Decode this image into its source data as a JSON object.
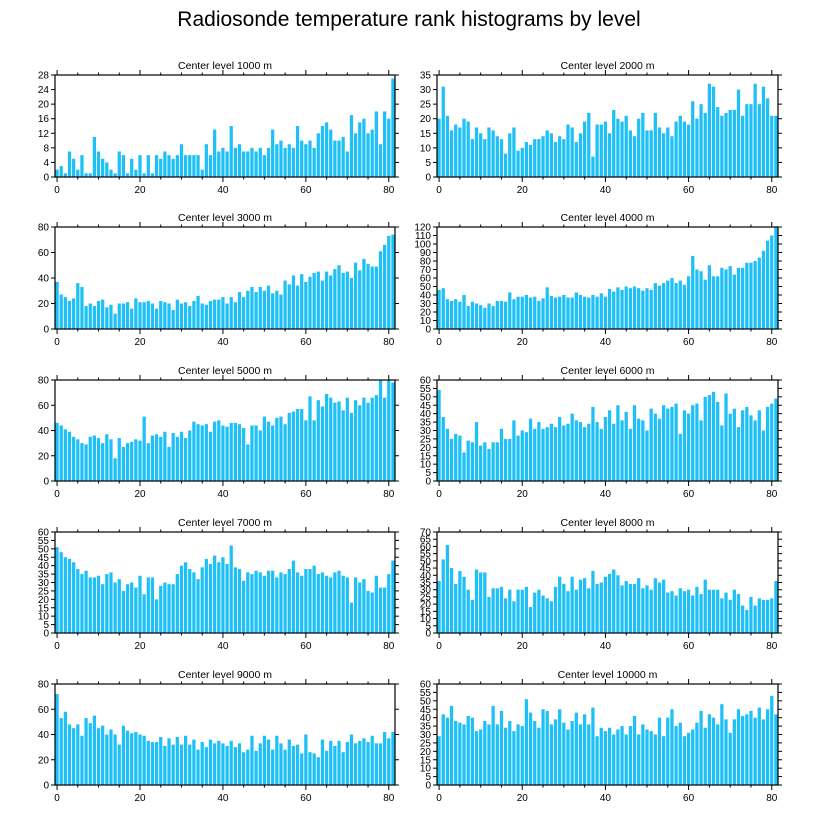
{
  "figure_title": "Radiosonde temperature rank histograms by level",
  "colors": {
    "bar": "#1ec0f5",
    "axis": "#000000",
    "background": "#ffffff"
  },
  "chart_data": [
    {
      "type": "bar",
      "title": "Center level 1000 m",
      "xlabel": "",
      "ylabel": "",
      "xlim": [
        -0.5,
        81.5
      ],
      "ylim": [
        0,
        28
      ],
      "xticks": [
        0,
        20,
        40,
        60,
        80
      ],
      "yticks": [
        0,
        4,
        8,
        12,
        16,
        20,
        24,
        28
      ],
      "values": [
        2,
        3,
        1,
        7,
        5,
        2,
        6,
        1,
        1,
        11,
        7,
        5,
        4,
        2,
        1,
        7,
        6,
        1,
        5,
        2,
        6,
        1,
        6,
        1,
        6,
        5,
        7,
        6,
        5,
        6,
        9,
        6,
        6,
        6,
        6,
        2,
        9,
        6,
        13,
        7,
        8,
        7,
        14,
        8,
        9,
        7,
        7,
        8,
        7,
        8,
        6,
        8,
        13,
        9,
        10,
        8,
        9,
        8,
        14,
        10,
        9,
        10,
        8,
        12,
        14,
        15,
        13,
        10,
        10,
        11,
        7,
        17,
        12,
        15,
        16,
        12,
        13,
        18,
        9,
        18,
        16,
        27
      ]
    },
    {
      "type": "bar",
      "title": "Center level 2000 m",
      "xlabel": "",
      "ylabel": "",
      "xlim": [
        -0.5,
        81.5
      ],
      "ylim": [
        0,
        35
      ],
      "xticks": [
        0,
        20,
        40,
        60,
        80
      ],
      "yticks": [
        0,
        5,
        10,
        15,
        20,
        25,
        30,
        35
      ],
      "values": [
        20,
        31,
        21,
        16,
        18,
        17,
        20,
        19,
        13,
        17,
        15,
        13,
        17,
        16,
        14,
        13,
        8,
        15,
        17,
        9,
        10,
        12,
        11,
        13,
        13,
        14,
        16,
        15,
        12,
        14,
        13,
        18,
        17,
        12,
        15,
        19,
        22,
        7,
        18,
        18,
        19,
        15,
        23,
        20,
        19,
        21,
        16,
        14,
        20,
        22,
        16,
        16,
        22,
        17,
        15,
        17,
        14,
        19,
        21,
        19,
        18,
        26,
        20,
        25,
        22,
        32,
        31,
        24,
        21,
        22,
        23,
        23,
        30,
        21,
        25,
        25,
        32,
        25,
        31,
        27,
        21,
        21
      ]
    },
    {
      "type": "bar",
      "title": "Center level 3000 m",
      "xlabel": "",
      "ylabel": "",
      "xlim": [
        -0.5,
        81.5
      ],
      "ylim": [
        0,
        80
      ],
      "xticks": [
        0,
        20,
        40,
        60,
        80
      ],
      "yticks": [
        0,
        20,
        40,
        60,
        80
      ],
      "values": [
        37,
        27,
        25,
        22,
        24,
        36,
        33,
        18,
        20,
        18,
        22,
        23,
        17,
        19,
        12,
        20,
        20,
        21,
        16,
        24,
        21,
        21,
        22,
        20,
        16,
        22,
        21,
        20,
        15,
        23,
        20,
        21,
        18,
        22,
        26,
        20,
        19,
        22,
        23,
        23,
        25,
        20,
        25,
        21,
        29,
        25,
        30,
        33,
        29,
        33,
        30,
        34,
        28,
        30,
        27,
        38,
        35,
        42,
        34,
        43,
        37,
        41,
        44,
        45,
        38,
        45,
        42,
        47,
        50,
        44,
        45,
        40,
        52,
        46,
        55,
        51,
        49,
        49,
        61,
        66,
        73,
        74
      ]
    },
    {
      "type": "bar",
      "title": "Center level 4000 m",
      "xlabel": "",
      "ylabel": "",
      "xlim": [
        -0.5,
        81.5
      ],
      "ylim": [
        0,
        120
      ],
      "xticks": [
        0,
        20,
        40,
        60,
        80
      ],
      "yticks": [
        0,
        10,
        20,
        30,
        40,
        50,
        60,
        70,
        80,
        90,
        100,
        110,
        120
      ],
      "values": [
        46,
        48,
        35,
        33,
        35,
        32,
        40,
        27,
        32,
        30,
        28,
        25,
        30,
        27,
        33,
        33,
        32,
        43,
        35,
        38,
        38,
        40,
        37,
        38,
        33,
        36,
        49,
        39,
        37,
        38,
        40,
        37,
        37,
        43,
        40,
        38,
        37,
        40,
        38,
        42,
        38,
        47,
        44,
        49,
        46,
        50,
        48,
        50,
        48,
        45,
        48,
        46,
        54,
        51,
        54,
        57,
        60,
        54,
        57,
        52,
        62,
        86,
        70,
        68,
        58,
        75,
        62,
        62,
        72,
        70,
        74,
        64,
        72,
        72,
        78,
        78,
        80,
        84,
        92,
        104,
        110,
        120
      ]
    },
    {
      "type": "bar",
      "title": "Center level 5000 m",
      "xlabel": "",
      "ylabel": "",
      "xlim": [
        -0.5,
        81.5
      ],
      "ylim": [
        0,
        80
      ],
      "xticks": [
        0,
        20,
        40,
        60,
        80
      ],
      "yticks": [
        0,
        20,
        40,
        60,
        80
      ],
      "values": [
        46,
        44,
        41,
        39,
        35,
        33,
        30,
        29,
        35,
        36,
        34,
        30,
        37,
        33,
        18,
        34,
        27,
        30,
        31,
        33,
        32,
        51,
        30,
        36,
        37,
        35,
        39,
        27,
        38,
        35,
        39,
        34,
        40,
        47,
        45,
        44,
        45,
        39,
        47,
        48,
        44,
        43,
        46,
        46,
        45,
        42,
        29,
        44,
        44,
        40,
        51,
        47,
        44,
        50,
        51,
        45,
        54,
        55,
        57,
        57,
        48,
        67,
        48,
        64,
        59,
        69,
        66,
        62,
        63,
        56,
        66,
        54,
        64,
        60,
        66,
        62,
        66,
        68,
        80,
        66,
        80,
        78
      ]
    },
    {
      "type": "bar",
      "title": "Center level 6000 m",
      "xlabel": "",
      "ylabel": "",
      "xlim": [
        -0.5,
        81.5
      ],
      "ylim": [
        0,
        60
      ],
      "xticks": [
        0,
        20,
        40,
        60,
        80
      ],
      "yticks": [
        0,
        5,
        10,
        15,
        20,
        25,
        30,
        35,
        40,
        45,
        50,
        55,
        60
      ],
      "values": [
        54,
        38,
        31,
        25,
        28,
        27,
        17,
        24,
        23,
        35,
        21,
        23,
        19,
        23,
        23,
        31,
        25,
        25,
        36,
        27,
        30,
        29,
        37,
        31,
        35,
        31,
        32,
        34,
        32,
        38,
        33,
        34,
        40,
        36,
        35,
        32,
        34,
        44,
        35,
        31,
        38,
        42,
        34,
        45,
        36,
        41,
        31,
        45,
        37,
        36,
        30,
        43,
        40,
        37,
        45,
        43,
        44,
        46,
        28,
        42,
        40,
        45,
        46,
        36,
        50,
        51,
        53,
        47,
        33,
        52,
        40,
        43,
        32,
        42,
        44,
        39,
        36,
        42,
        30,
        44,
        46,
        49
      ]
    },
    {
      "type": "bar",
      "title": "Center level 7000 m",
      "xlabel": "",
      "ylabel": "",
      "xlim": [
        -0.5,
        81.5
      ],
      "ylim": [
        0,
        60
      ],
      "xticks": [
        0,
        20,
        40,
        60,
        80
      ],
      "yticks": [
        0,
        5,
        10,
        15,
        20,
        25,
        30,
        35,
        40,
        45,
        50,
        55,
        60
      ],
      "values": [
        51,
        48,
        45,
        44,
        42,
        38,
        35,
        37,
        33,
        33,
        34,
        29,
        35,
        36,
        30,
        32,
        25,
        29,
        30,
        27,
        34,
        23,
        33,
        33,
        20,
        28,
        30,
        29,
        29,
        35,
        40,
        42,
        38,
        36,
        32,
        39,
        44,
        41,
        46,
        42,
        45,
        41,
        52,
        39,
        38,
        31,
        36,
        35,
        37,
        36,
        34,
        37,
        37,
        33,
        36,
        35,
        38,
        43,
        36,
        34,
        38,
        38,
        40,
        35,
        36,
        34,
        33,
        36,
        37,
        34,
        33,
        18,
        33,
        30,
        32,
        25,
        24,
        34,
        27,
        27,
        35,
        43
      ]
    },
    {
      "type": "bar",
      "title": "Center level 8000 m",
      "xlabel": "",
      "ylabel": "",
      "xlim": [
        -0.5,
        81.5
      ],
      "ylim": [
        0,
        70
      ],
      "xticks": [
        0,
        20,
        40,
        60,
        80
      ],
      "yticks": [
        0,
        5,
        10,
        15,
        20,
        25,
        30,
        35,
        40,
        45,
        50,
        55,
        60,
        65,
        70
      ],
      "values": [
        36,
        51,
        61,
        45,
        34,
        43,
        39,
        30,
        23,
        44,
        42,
        42,
        25,
        31,
        31,
        32,
        24,
        30,
        22,
        30,
        30,
        32,
        18,
        28,
        30,
        26,
        24,
        22,
        32,
        39,
        34,
        29,
        39,
        30,
        37,
        38,
        31,
        43,
        34,
        35,
        39,
        41,
        44,
        40,
        33,
        36,
        34,
        34,
        38,
        31,
        33,
        30,
        38,
        35,
        37,
        28,
        29,
        26,
        31,
        29,
        30,
        26,
        32,
        27,
        37,
        30,
        30,
        30,
        24,
        28,
        23,
        30,
        27,
        19,
        16,
        25,
        19,
        24,
        23,
        23,
        24,
        36
      ]
    },
    {
      "type": "bar",
      "title": "Center level 9000 m",
      "xlabel": "",
      "ylabel": "",
      "xlim": [
        -0.5,
        81.5
      ],
      "ylim": [
        0,
        80
      ],
      "xticks": [
        0,
        20,
        40,
        60,
        80
      ],
      "yticks": [
        0,
        20,
        40,
        60,
        80
      ],
      "values": [
        72,
        53,
        58,
        48,
        45,
        48,
        39,
        53,
        49,
        55,
        45,
        47,
        40,
        44,
        40,
        32,
        47,
        43,
        41,
        42,
        40,
        39,
        35,
        34,
        34,
        38,
        31,
        37,
        32,
        38,
        32,
        39,
        32,
        36,
        28,
        34,
        30,
        36,
        33,
        35,
        33,
        31,
        35,
        30,
        33,
        26,
        28,
        39,
        27,
        33,
        39,
        36,
        28,
        39,
        33,
        28,
        36,
        31,
        32,
        25,
        40,
        26,
        25,
        22,
        36,
        27,
        35,
        31,
        35,
        26,
        34,
        40,
        33,
        35,
        37,
        34,
        39,
        33,
        33,
        42,
        37,
        42
      ]
    },
    {
      "type": "bar",
      "title": "Center level 10000 m",
      "xlabel": "",
      "ylabel": "",
      "xlim": [
        -0.5,
        81.5
      ],
      "ylim": [
        0,
        60
      ],
      "xticks": [
        0,
        20,
        40,
        60,
        80
      ],
      "yticks": [
        0,
        5,
        10,
        15,
        20,
        25,
        30,
        35,
        40,
        45,
        50,
        55,
        60
      ],
      "values": [
        29,
        42,
        40,
        47,
        38,
        37,
        36,
        41,
        40,
        32,
        33,
        38,
        36,
        47,
        36,
        44,
        34,
        38,
        32,
        36,
        35,
        51,
        43,
        38,
        34,
        45,
        44,
        36,
        39,
        45,
        37,
        33,
        38,
        43,
        36,
        42,
        36,
        46,
        29,
        34,
        32,
        34,
        30,
        33,
        35,
        30,
        35,
        41,
        30,
        36,
        33,
        32,
        30,
        40,
        29,
        40,
        45,
        35,
        37,
        29,
        31,
        33,
        37,
        44,
        34,
        42,
        40,
        36,
        48,
        39,
        31,
        39,
        45,
        41,
        42,
        44,
        40,
        46,
        39,
        45,
        53,
        42
      ]
    }
  ]
}
